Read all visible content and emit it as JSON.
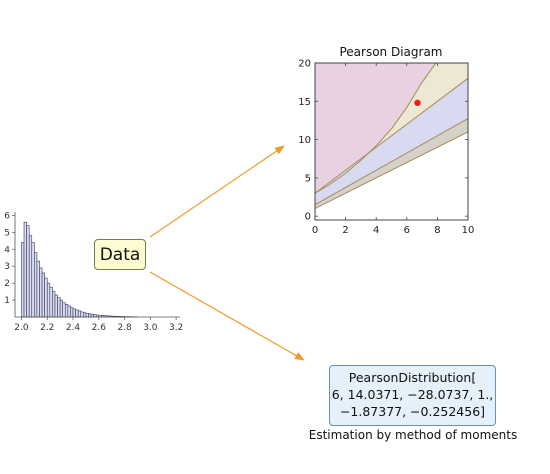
{
  "colors": {
    "arrow": "#f29a2e",
    "histogram_bar": "#d9dcf3",
    "histogram_edge": "#3a3a55",
    "region_beta": "#e8d1e0",
    "region_top": "#ece8d3",
    "region_mid": "#d8daf1",
    "region_bottom": "#d5d2cc",
    "curve": "#a88a5a",
    "point": "#ee1c1c"
  },
  "data_label": "Data",
  "result": {
    "lines": [
      "PearsonDistribution[",
      "6, 14.0371, −28.0737, 1.,",
      "−1.87377, −0.252456]"
    ],
    "caption": "Estimation by method of moments"
  },
  "chart_data": [
    {
      "type": "bar",
      "title": "",
      "xlabel": "",
      "ylabel": "",
      "xlim": [
        1.95,
        3.23
      ],
      "ylim": [
        0,
        6.2
      ],
      "xticks": [
        2.0,
        2.2,
        2.4,
        2.6,
        2.8,
        3.0,
        3.2
      ],
      "xtick_labels": [
        "2.0",
        "2.2",
        "2.4",
        "2.6",
        "2.8",
        "3.0",
        "3.2"
      ],
      "yticks": [
        1,
        2,
        3,
        4,
        5,
        6
      ],
      "ytick_labels": [
        "1",
        "2",
        "3",
        "4",
        "5",
        "6"
      ],
      "bin_start": 2.0,
      "bin_width": 0.02,
      "values": [
        4.4,
        5.6,
        5.4,
        4.8,
        4.4,
        3.8,
        3.3,
        2.9,
        2.6,
        2.3,
        2.0,
        1.75,
        1.5,
        1.3,
        1.15,
        1.0,
        0.85,
        0.75,
        0.65,
        0.55,
        0.48,
        0.42,
        0.36,
        0.3,
        0.26,
        0.22,
        0.19,
        0.16,
        0.14,
        0.12,
        0.1,
        0.09,
        0.08,
        0.07,
        0.06,
        0.05,
        0.04,
        0.04,
        0.03,
        0.03,
        0.02,
        0.02,
        0.02,
        0.01,
        0.01
      ]
    },
    {
      "type": "area",
      "title": "Pearson Diagram",
      "xlabel": "",
      "ylabel": "",
      "xlim": [
        0,
        10
      ],
      "ylim": [
        -0.5,
        20
      ],
      "xticks": [
        0,
        2,
        4,
        6,
        8,
        10
      ],
      "xtick_labels": [
        "0",
        "2",
        "4",
        "6",
        "8",
        "10"
      ],
      "yticks": [
        0,
        5,
        10,
        15,
        20
      ],
      "ytick_labels": [
        "0",
        "5",
        "10",
        "15",
        "20"
      ],
      "regions": {
        "bottom_line": [
          [
            0,
            1.0
          ],
          [
            10,
            11.0
          ]
        ],
        "lower_line": [
          [
            0,
            1.5
          ],
          [
            10,
            12.75
          ]
        ],
        "middle_line": [
          [
            0,
            3.0
          ],
          [
            10,
            18.0
          ]
        ],
        "upper_curve": [
          [
            0,
            3.0
          ],
          [
            1,
            4.2
          ],
          [
            2,
            5.6
          ],
          [
            3,
            7.3
          ],
          [
            4,
            9.2
          ],
          [
            5,
            11.4
          ],
          [
            6,
            14.2
          ],
          [
            7,
            17.5
          ],
          [
            7.9,
            20.0
          ]
        ]
      },
      "point": {
        "x": 6.7,
        "y": 14.8
      }
    }
  ]
}
